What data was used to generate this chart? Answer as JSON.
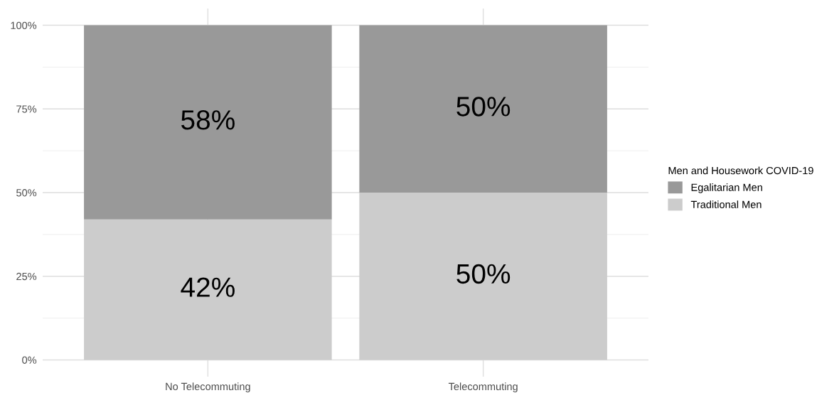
{
  "chart_data": {
    "type": "bar",
    "stacked": true,
    "categories": [
      "No Telecommuting",
      "Telecommuting"
    ],
    "series": [
      {
        "name": "Traditional Men",
        "color": "#cccccc",
        "values": [
          42,
          50
        ],
        "value_labels": [
          "42%",
          "50%"
        ]
      },
      {
        "name": "Egalitarian Men",
        "color": "#999999",
        "values": [
          58,
          50
        ],
        "value_labels": [
          "58%",
          "50%"
        ]
      }
    ],
    "legend_title": "Men and Housework COVID-19",
    "legend": "right",
    "ylim": [
      -5,
      105
    ],
    "yticks": [
      {
        "value": 0,
        "label": "0%"
      },
      {
        "value": 25,
        "label": "25%"
      },
      {
        "value": 50,
        "label": "50%"
      },
      {
        "value": 75,
        "label": "75%"
      },
      {
        "value": 100,
        "label": "100%"
      }
    ],
    "grid": true
  }
}
